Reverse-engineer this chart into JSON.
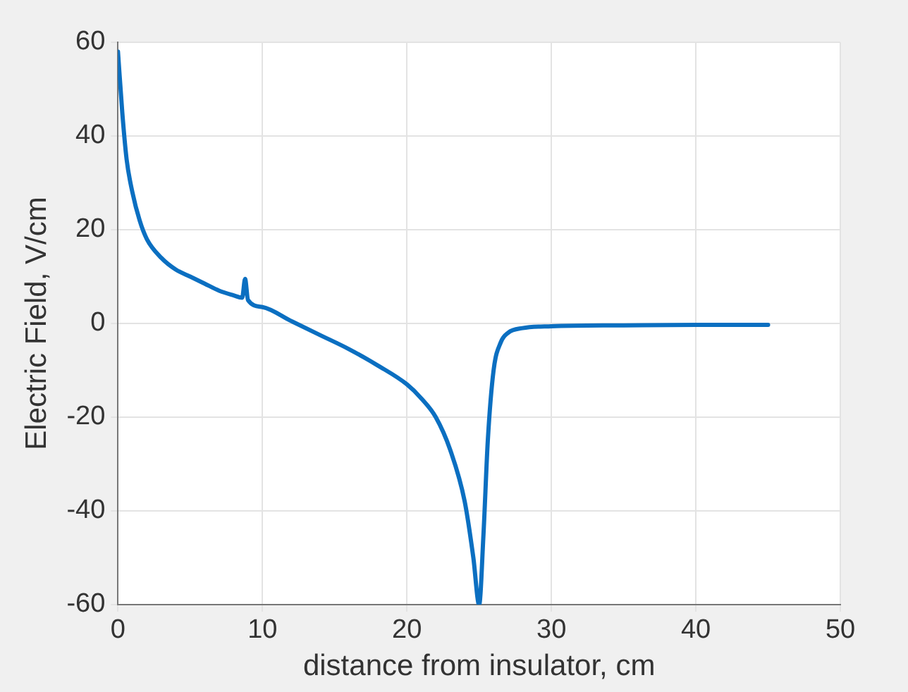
{
  "chart_data": {
    "type": "line",
    "xlabel": "distance from insulator, cm",
    "ylabel": "Electric Field, V/cm",
    "xlim": [
      0,
      50
    ],
    "xticks": [
      0,
      10,
      20,
      30,
      40,
      50
    ],
    "ylim": [
      -60,
      60
    ],
    "yticks": [
      -60,
      -40,
      -20,
      0,
      20,
      40,
      60
    ],
    "grid": true,
    "marker": "none",
    "line_style": "solid",
    "series": [
      {
        "color": "#0b6fc1",
        "x": [
          0,
          0.3,
          0.6,
          1,
          1.5,
          2,
          3,
          4,
          5,
          6,
          7,
          8,
          8.6,
          8.8,
          9,
          10,
          12,
          14,
          16,
          18,
          20,
          21,
          22,
          23,
          24,
          24.6,
          25,
          25.3,
          25.6,
          26,
          26.5,
          27,
          28,
          30,
          35,
          40,
          45
        ],
        "values": [
          58,
          45,
          35,
          28,
          22,
          18,
          14,
          11.5,
          10,
          8.5,
          7,
          6,
          5.5,
          9.5,
          5,
          3.5,
          0.5,
          -2.5,
          -5.5,
          -9,
          -13,
          -16,
          -20,
          -27,
          -38,
          -50,
          -60,
          -45,
          -25,
          -10,
          -4,
          -2,
          -1,
          -0.6,
          -0.4,
          -0.3,
          -0.3
        ]
      }
    ]
  }
}
